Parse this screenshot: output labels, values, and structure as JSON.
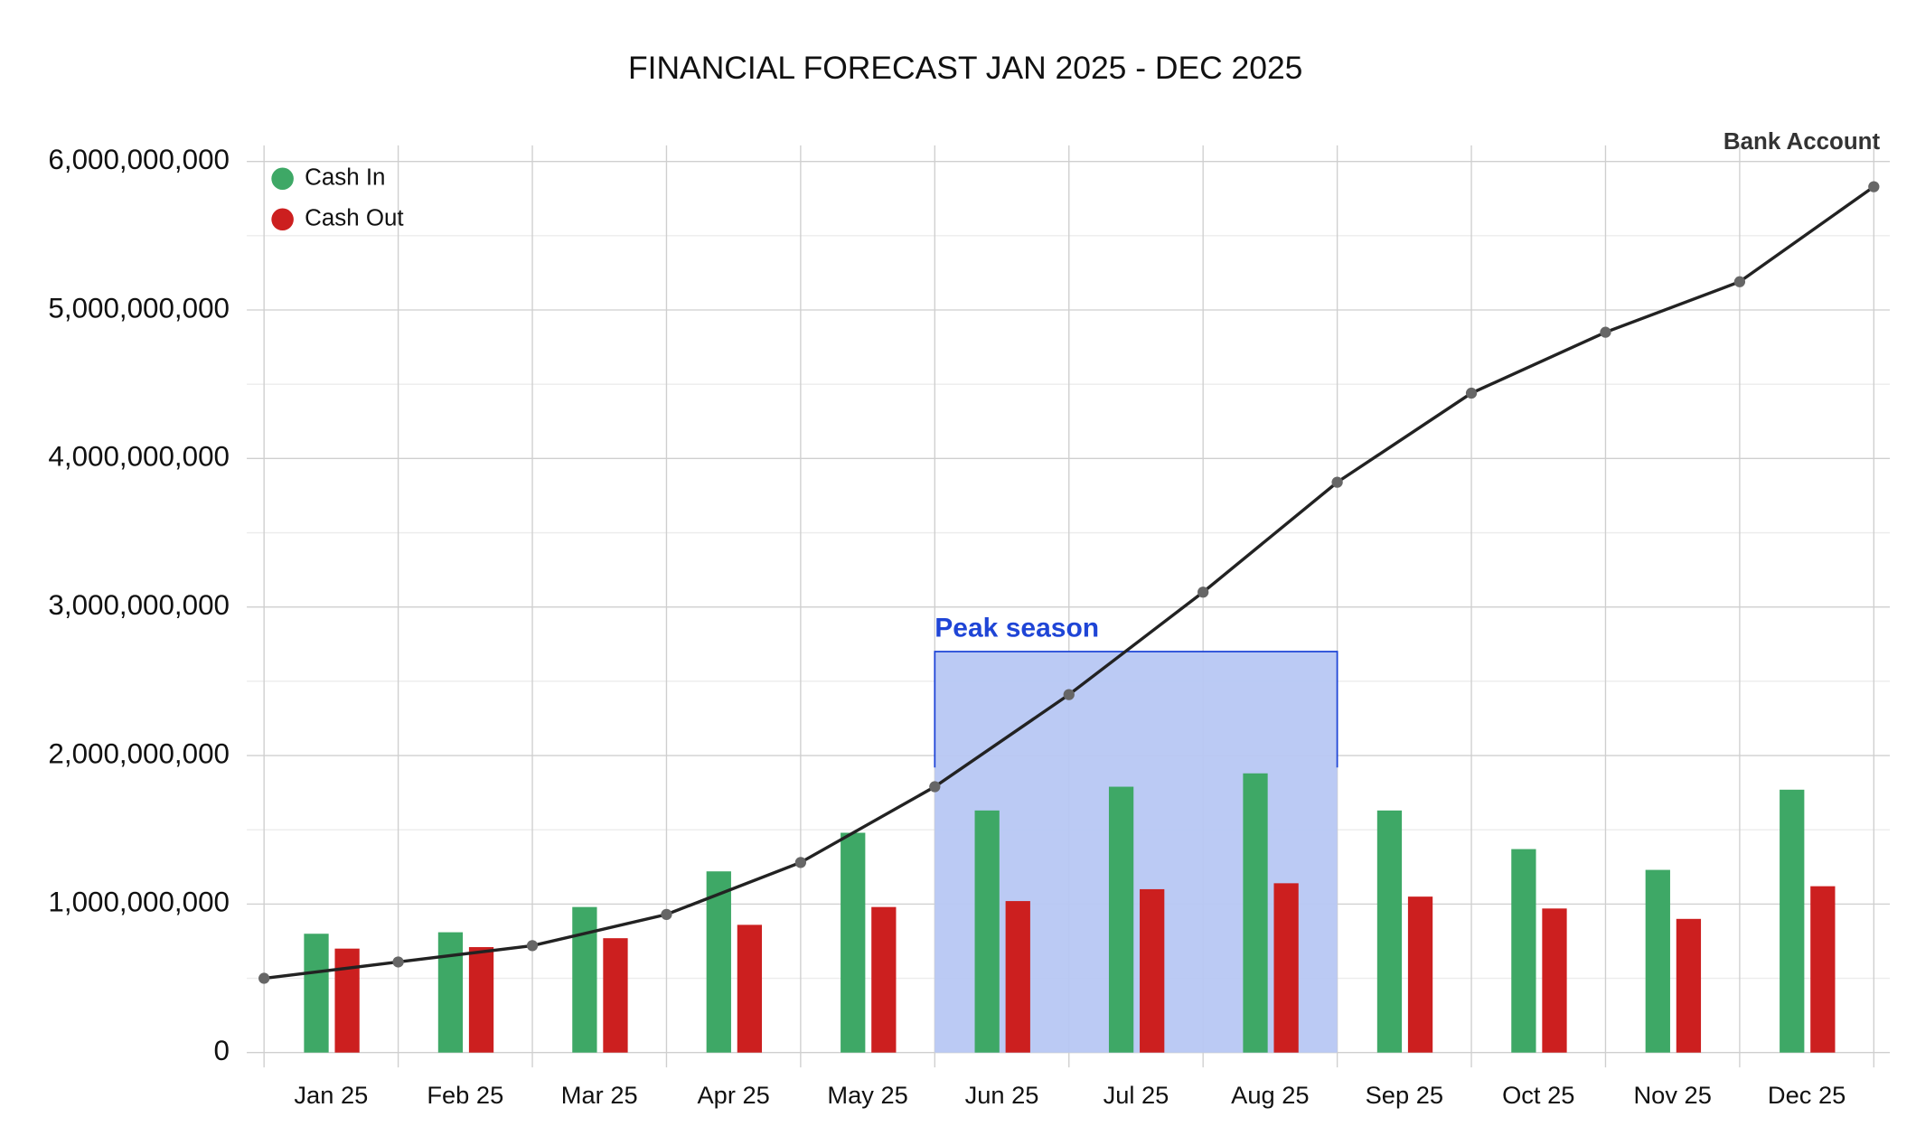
{
  "chart_data": {
    "type": "bar",
    "title": "FINANCIAL FORECAST JAN 2025 - DEC 2025",
    "categories": [
      "Jan 25",
      "Feb 25",
      "Mar 25",
      "Apr 25",
      "May 25",
      "Jun 25",
      "Jul 25",
      "Aug 25",
      "Sep 25",
      "Oct 25",
      "Nov 25",
      "Dec 25"
    ],
    "series": [
      {
        "name": "Cash In",
        "color": "#3ea866",
        "values": [
          800000000,
          810000000,
          980000000,
          1220000000,
          1480000000,
          1630000000,
          1790000000,
          1880000000,
          1630000000,
          1370000000,
          1230000000,
          1770000000
        ]
      },
      {
        "name": "Cash Out",
        "color": "#cc1f1f",
        "values": [
          700000000,
          710000000,
          770000000,
          860000000,
          980000000,
          1020000000,
          1100000000,
          1140000000,
          1050000000,
          970000000,
          900000000,
          1120000000
        ]
      }
    ],
    "balance": {
      "name": "Bank Account",
      "type": "line",
      "color": "#222222",
      "marker_color": "#666666",
      "values": [
        500000000,
        610000000,
        720000000,
        930000000,
        1280000000,
        1790000000,
        2410000000,
        3100000000,
        3840000000,
        4440000000,
        4850000000,
        5190000000,
        5830000000
      ]
    },
    "annotation": {
      "text": "Peak season",
      "start": "Jun 25",
      "end": "Aug 25",
      "y": 2700000000,
      "color": "#1f45d6",
      "fill": "#b7c7f3"
    },
    "ylim": [
      0,
      6000000000
    ],
    "yticks": [
      0,
      {
        "value": 1000000000,
        "label": "1,000,000,000"
      },
      {
        "value": 2000000000,
        "label": "2,000,000,000"
      },
      {
        "value": 3000000000,
        "label": "3,000,000,000"
      },
      {
        "value": 4000000000,
        "label": "4,000,000,000"
      },
      {
        "value": 5000000000,
        "label": "5,000,000,000"
      },
      {
        "value": 6000000000,
        "label": "6,000,000,000"
      }
    ],
    "yminor": [
      500000000,
      1500000000,
      2500000000,
      3500000000,
      4500000000,
      5500000000
    ],
    "grid": true,
    "legend": "top-left"
  }
}
